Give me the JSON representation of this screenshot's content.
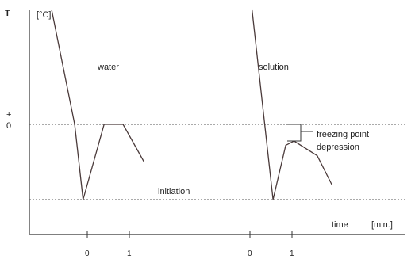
{
  "chart_data": {
    "type": "line",
    "title": "",
    "ylabel_symbol": "T",
    "ylabel_unit": "[°C]",
    "y_tick_sign": "+",
    "y_tick_zero": "0",
    "xlabel": "time",
    "xlabel_unit": "[min.]",
    "x_ticks_left": [
      "0",
      "1"
    ],
    "x_ticks_right": [
      "0",
      "1"
    ],
    "ylim": [
      -1.8,
      2.8
    ],
    "grid": false,
    "reference_lines": [
      {
        "name": "freezing-line",
        "y": 0
      },
      {
        "name": "initiation-line",
        "y": -1.8
      }
    ],
    "series": [
      {
        "name": "water",
        "points": [
          {
            "x": -0.85,
            "y": 2.8
          },
          {
            "x": -0.3,
            "y": 0
          },
          {
            "x": -0.1,
            "y": -1.8
          },
          {
            "x": 0.4,
            "y": 0
          },
          {
            "x": 0.85,
            "y": 0
          },
          {
            "x": 1.35,
            "y": -0.9
          }
        ]
      },
      {
        "name": "solution",
        "points": [
          {
            "x": 0.05,
            "y": 2.8
          },
          {
            "x": 0.35,
            "y": 0
          },
          {
            "x": 0.55,
            "y": -1.8
          },
          {
            "x": 0.85,
            "y": -0.5
          },
          {
            "x": 1.05,
            "y": -0.4
          },
          {
            "x": 1.6,
            "y": -0.75
          },
          {
            "x": 1.95,
            "y": -1.45
          }
        ]
      }
    ],
    "annotations": {
      "water": "water",
      "solution": "solution",
      "initiation": "initiation",
      "freezing_line1": "freezing point",
      "freezing_line2": "depression"
    }
  }
}
